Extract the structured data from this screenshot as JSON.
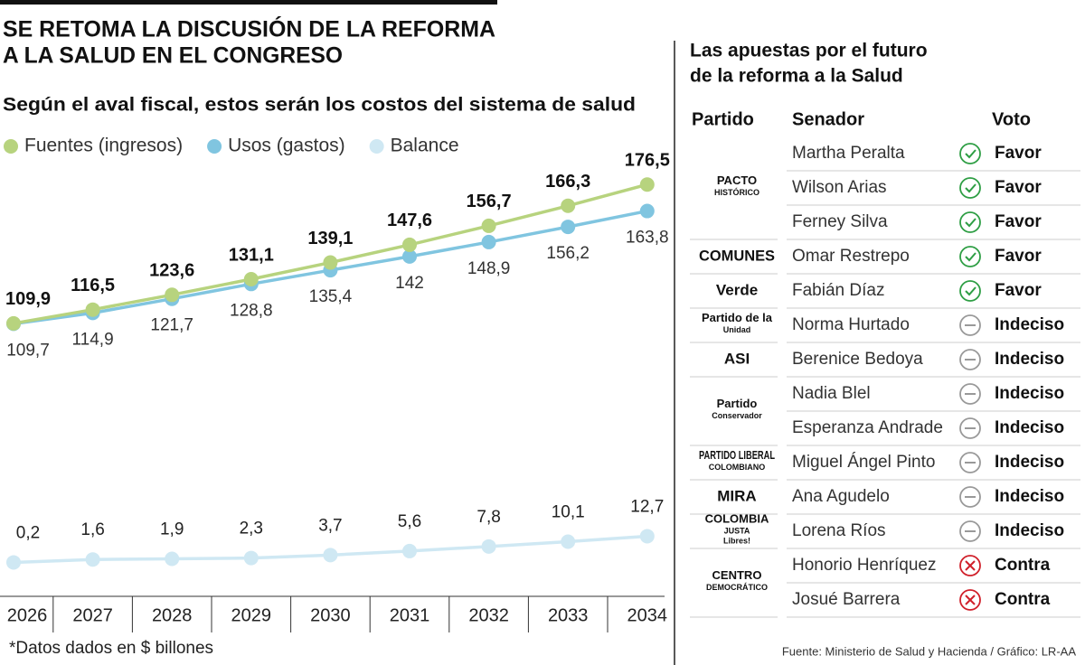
{
  "title": [
    "SE RETOMA LA DISCUSIÓN DE LA REFORMA",
    "A LA SALUD EN EL CONGRESO"
  ],
  "chart_data": {
    "type": "line",
    "subtitle": "Según el aval fiscal, estos serán los costos del sistema de salud",
    "categories": [
      "2026",
      "2027",
      "2028",
      "2029",
      "2030",
      "2031",
      "2032",
      "2033",
      "2034"
    ],
    "series": [
      {
        "name": "Fuentes (ingresos)",
        "color": "#b7d37e",
        "values": [
          109.9,
          116.5,
          123.6,
          131.1,
          139.1,
          147.6,
          156.7,
          166.3,
          176.5
        ],
        "value_labels": [
          "109,9",
          "116,5",
          "123,6",
          "131,1",
          "139,1",
          "147,6",
          "156,7",
          "166,3",
          "176,5"
        ]
      },
      {
        "name": "Usos (gastos)",
        "color": "#80c5e0",
        "values": [
          109.7,
          114.9,
          121.7,
          128.8,
          135.4,
          142,
          148.9,
          156.2,
          163.8
        ],
        "value_labels": [
          "109,7",
          "114,9",
          "121,7",
          "128,8",
          "135,4",
          "142",
          "148,9",
          "156,2",
          "163,8"
        ]
      },
      {
        "name": "Balance",
        "color": "#cfe8f3",
        "axis": "y2",
        "values": [
          0.2,
          1.6,
          1.9,
          2.3,
          3.7,
          5.6,
          7.8,
          10.1,
          12.7
        ],
        "value_labels": [
          "0,2",
          "1,6",
          "1,9",
          "2,3",
          "3,7",
          "5,6",
          "7,8",
          "10,1",
          "12,7"
        ]
      }
    ],
    "ylim": [
      -21,
      200
    ],
    "y2lim": [
      -16,
      204
    ],
    "note": "*Datos dados en $ billones"
  },
  "table": {
    "title": [
      "Las apuestas por el futuro",
      "de la reforma a la Salud"
    ],
    "header": [
      "Partido",
      "Senador",
      "Voto"
    ],
    "rows": [
      {
        "party": [
          "PACTO",
          "HISTÓRICO"
        ],
        "color": "#8a2d8f",
        "senator": "Martha Peralta",
        "vote": "Favor"
      },
      {
        "party": null,
        "senator": "Wilson Arias",
        "vote": "Favor"
      },
      {
        "party": null,
        "senator": "Ferney Silva",
        "vote": "Favor"
      },
      {
        "party": [
          "COMUNES"
        ],
        "color": "#c8282e",
        "senator": "Omar Restrepo",
        "vote": "Favor"
      },
      {
        "party": [
          "Verde"
        ],
        "color": "#2f9a3c",
        "senator": "Fabián Díaz",
        "vote": "Favor"
      },
      {
        "party": [
          "Partido de la",
          "Unidad"
        ],
        "color": "#e0861a",
        "senator": "Norma Hurtado",
        "vote": "Indeciso"
      },
      {
        "party": [
          "ASI"
        ],
        "color": "#d5b400",
        "senator": "Berenice Bedoya",
        "vote": "Indeciso"
      },
      {
        "party": [
          "Partido",
          "Conservador"
        ],
        "color": "#1f4b9b",
        "senator": "Nadia Blel",
        "vote": "Indeciso"
      },
      {
        "party": null,
        "senator": "Esperanza Andrade",
        "vote": "Indeciso"
      },
      {
        "party": [
          "PARTIDO LIBERAL",
          "COLOMBIANO"
        ],
        "color": "#d3202a",
        "senator": "Miguel Ángel Pinto",
        "vote": "Indeciso"
      },
      {
        "party": [
          "MIRA"
        ],
        "color": "#1b3f8f",
        "senator": "Ana Agudelo",
        "vote": "Indeciso"
      },
      {
        "party": [
          "COLOMBIA",
          "JUSTA",
          "Libres!"
        ],
        "color": "#a0561c",
        "senator": "Lorena Ríos",
        "vote": "Indeciso"
      },
      {
        "party": [
          "CENTRO",
          "DEMOCRÁTICO"
        ],
        "color": "#1d3e8a",
        "senator": "Honorio Henríquez",
        "vote": "Contra"
      },
      {
        "party": null,
        "senator": "Josué Barrera",
        "vote": "Contra"
      }
    ]
  },
  "source": "Fuente: Ministerio de Salud y Hacienda / Gráfico: LR-AA"
}
